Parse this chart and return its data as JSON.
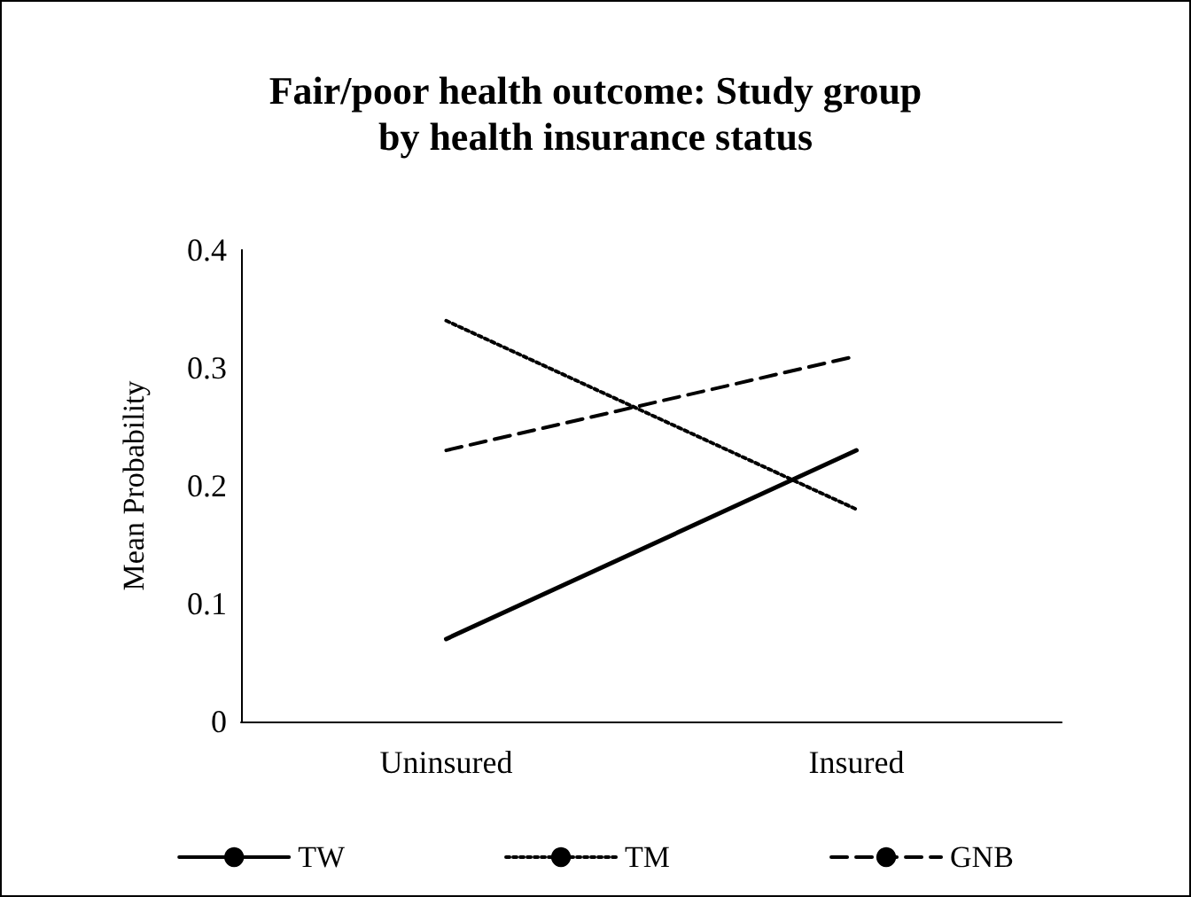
{
  "chart_data": {
    "type": "line",
    "title": "Fair/poor health outcome: Study group\nby health insurance status",
    "ylabel": "Mean Probability",
    "categories": [
      "Uninsured",
      "Insured"
    ],
    "series": [
      {
        "name": "TW",
        "color": "#000000",
        "line_style": "solid",
        "values": [
          0.07,
          0.23
        ]
      },
      {
        "name": "TM",
        "color": "#000000",
        "line_style": "dotted",
        "values": [
          0.34,
          0.18
        ]
      },
      {
        "name": "GNB",
        "color": "#000000",
        "line_style": "dashed",
        "values": [
          0.23,
          0.31
        ]
      }
    ],
    "ylim": [
      0,
      0.4
    ],
    "yticks": [
      0,
      0.1,
      0.2,
      0.3,
      0.4
    ],
    "grid": false,
    "legend": "bottom",
    "marker": "none"
  }
}
